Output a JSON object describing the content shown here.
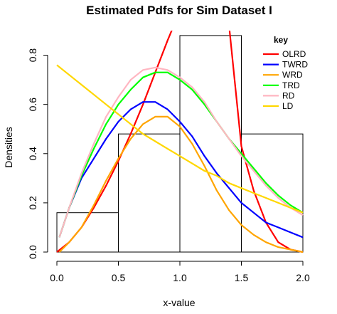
{
  "chart_data": {
    "type": "line",
    "title": "Estimated Pdfs for Sim Dataset I",
    "xlabel": "x-value",
    "ylabel": "Densities",
    "xlim": [
      0.0,
      2.0
    ],
    "ylim": [
      0.0,
      0.9
    ],
    "x_ticks": [
      "0.0",
      "0.5",
      "1.0",
      "1.5",
      "2.0"
    ],
    "y_ticks": [
      "0.0",
      "0.2",
      "0.4",
      "0.6",
      "0.8"
    ],
    "histogram": {
      "bin_edges": [
        0.0,
        0.5,
        1.0,
        1.5,
        2.0
      ],
      "densities": [
        0.16,
        0.48,
        0.88,
        0.48
      ]
    },
    "legend_title": "key",
    "legend_position": "top-right",
    "series": [
      {
        "name": "OLRD",
        "color": "#ff0000",
        "x": [
          0.0,
          0.1,
          0.2,
          0.3,
          0.4,
          0.5,
          0.6,
          0.7,
          0.8,
          0.9,
          1.0,
          1.1,
          1.2,
          1.3,
          1.4,
          1.5,
          1.6,
          1.7,
          1.8,
          1.9,
          2.0
        ],
        "y": [
          0.0,
          0.04,
          0.1,
          0.18,
          0.27,
          0.37,
          0.48,
          0.6,
          0.73,
          0.86,
          0.98,
          1.05,
          1.05,
          1.0,
          0.92,
          0.43,
          0.25,
          0.12,
          0.04,
          0.01,
          0.0
        ]
      },
      {
        "name": "TWRD",
        "color": "#0000ff",
        "x": [
          0.02,
          0.1,
          0.2,
          0.3,
          0.4,
          0.5,
          0.6,
          0.7,
          0.8,
          0.9,
          1.0,
          1.1,
          1.2,
          1.3,
          1.4,
          1.5,
          1.6,
          1.7,
          1.8,
          1.9,
          2.0
        ],
        "y": [
          0.06,
          0.18,
          0.3,
          0.38,
          0.46,
          0.53,
          0.58,
          0.61,
          0.61,
          0.58,
          0.53,
          0.47,
          0.39,
          0.32,
          0.26,
          0.2,
          0.16,
          0.12,
          0.1,
          0.08,
          0.06
        ]
      },
      {
        "name": "WRD",
        "color": "#ffa500",
        "x": [
          0.02,
          0.1,
          0.2,
          0.3,
          0.4,
          0.5,
          0.6,
          0.7,
          0.8,
          0.9,
          1.0,
          1.1,
          1.2,
          1.3,
          1.4,
          1.5,
          1.6,
          1.7,
          1.8,
          1.9,
          2.0
        ],
        "y": [
          0.0,
          0.04,
          0.1,
          0.19,
          0.29,
          0.38,
          0.46,
          0.52,
          0.55,
          0.55,
          0.51,
          0.44,
          0.35,
          0.25,
          0.17,
          0.11,
          0.07,
          0.04,
          0.02,
          0.01,
          0.0
        ]
      },
      {
        "name": "TRD",
        "color": "#00ff00",
        "x": [
          0.02,
          0.1,
          0.2,
          0.3,
          0.4,
          0.5,
          0.6,
          0.7,
          0.8,
          0.9,
          1.0,
          1.1,
          1.2,
          1.3,
          1.4,
          1.5,
          1.6,
          1.7,
          1.8,
          1.9,
          2.0
        ],
        "y": [
          0.06,
          0.18,
          0.31,
          0.42,
          0.52,
          0.6,
          0.66,
          0.71,
          0.73,
          0.73,
          0.7,
          0.66,
          0.6,
          0.53,
          0.46,
          0.4,
          0.34,
          0.28,
          0.23,
          0.19,
          0.16
        ]
      },
      {
        "name": "RD",
        "color": "#ffb6c1",
        "x": [
          0.02,
          0.1,
          0.2,
          0.3,
          0.4,
          0.5,
          0.6,
          0.7,
          0.8,
          0.9,
          1.0,
          1.1,
          1.2,
          1.3,
          1.4,
          1.5,
          1.6,
          1.7,
          1.8,
          1.9,
          2.0
        ],
        "y": [
          0.06,
          0.18,
          0.32,
          0.44,
          0.55,
          0.63,
          0.7,
          0.74,
          0.75,
          0.74,
          0.71,
          0.67,
          0.61,
          0.53,
          0.46,
          0.39,
          0.33,
          0.27,
          0.22,
          0.18,
          0.15
        ]
      },
      {
        "name": "LD",
        "color": "#ffd700",
        "x": [
          0.0,
          0.1,
          0.2,
          0.3,
          0.4,
          0.5,
          0.6,
          0.7,
          0.8,
          0.9,
          1.0,
          1.1,
          1.2,
          1.3,
          1.4,
          1.5,
          1.6,
          1.7,
          1.8,
          1.9,
          2.0
        ],
        "y": [
          0.76,
          0.72,
          0.68,
          0.64,
          0.6,
          0.56,
          0.52,
          0.48,
          0.45,
          0.42,
          0.39,
          0.36,
          0.33,
          0.31,
          0.28,
          0.26,
          0.24,
          0.22,
          0.2,
          0.18,
          0.16
        ]
      }
    ]
  }
}
